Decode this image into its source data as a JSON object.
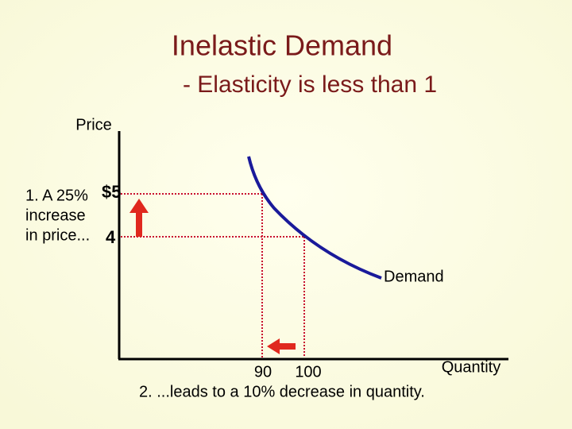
{
  "header": {
    "title": "Inelastic Demand",
    "subtitle": "- Elasticity is less than 1"
  },
  "axes": {
    "y_label": "Price",
    "x_label": "Quantity"
  },
  "y_ticks": [
    "$5",
    "4"
  ],
  "x_ticks": [
    "90",
    "100"
  ],
  "curve_label": "Demand",
  "annotations": {
    "price_change": [
      "1. A 25%",
      "increase",
      "in price..."
    ],
    "quantity_change": "2. ...leads to a 10% decrease in quantity."
  }
}
